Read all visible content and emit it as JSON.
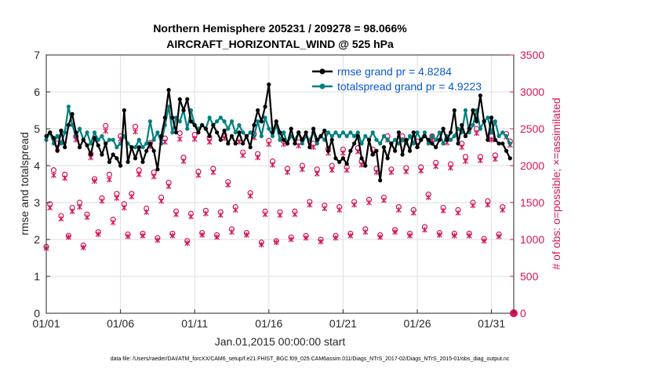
{
  "chart_data": {
    "type": "line",
    "title": "Northern Hemisphere 205231 / 209278 = 98.066%",
    "subtitle": "AIRCRAFT_HORIZONTAL_WIND @ 525 hPa",
    "xlabel": "Jan.01,2015 00:00:00 start",
    "ylabel": "rmse and totalspread",
    "y2label": "# of obs: o=possible; ×=assimilated",
    "footer": "data file: /Users/raeder/DAI/ATM_forcXX/CAM6_setup/f.e21.FHIST_BGC.f09_025.CAM6assim.011/Diags_NTrS_2017-02/Diags_NTrS_2015-01/obs_diag_output.nc",
    "xlim": [
      0,
      31.5
    ],
    "ylim": [
      0,
      7
    ],
    "y2lim": [
      0,
      3500
    ],
    "xticks": [
      0,
      5,
      10,
      15,
      20,
      25,
      30
    ],
    "xtick_labels": [
      "01/01",
      "01/06",
      "01/11",
      "01/16",
      "01/21",
      "01/26",
      "01/31"
    ],
    "yticks": [
      0,
      1,
      2,
      3,
      4,
      5,
      6,
      7
    ],
    "ytick_labels": [
      "0",
      "1",
      "2",
      "3",
      "4",
      "5",
      "6",
      "7"
    ],
    "y2ticks": [
      0,
      500,
      1000,
      1500,
      2000,
      2500,
      3000,
      3500
    ],
    "y2tick_labels": [
      "0",
      "500",
      "1000",
      "1500",
      "2000",
      "2500",
      "3000",
      "3500"
    ],
    "grid": true,
    "legend_position": "top-right",
    "series": [
      {
        "name": "rmse grand pr = 4.8284",
        "color": "#000000",
        "marker": "dot",
        "x": [
          0,
          0.25,
          0.5,
          0.75,
          1,
          1.25,
          1.5,
          1.75,
          2,
          2.25,
          2.5,
          2.75,
          3,
          3.25,
          3.5,
          3.75,
          4,
          4.25,
          4.5,
          4.75,
          5,
          5.25,
          5.5,
          5.75,
          6,
          6.25,
          6.5,
          6.75,
          7,
          7.25,
          7.5,
          7.75,
          8,
          8.25,
          8.5,
          8.75,
          9,
          9.25,
          9.5,
          9.75,
          10,
          10.25,
          10.5,
          10.75,
          11,
          11.25,
          11.5,
          11.75,
          12,
          12.25,
          12.5,
          12.75,
          13,
          13.25,
          13.5,
          13.75,
          14,
          14.25,
          14.5,
          14.75,
          15,
          15.25,
          15.5,
          15.75,
          16,
          16.25,
          16.5,
          16.75,
          17,
          17.25,
          17.5,
          17.75,
          18,
          18.25,
          18.5,
          18.75,
          19,
          19.25,
          19.5,
          19.75,
          20,
          20.25,
          20.5,
          20.75,
          21,
          21.25,
          21.5,
          21.75,
          22,
          22.25,
          22.5,
          22.75,
          23,
          23.25,
          23.5,
          23.75,
          24,
          24.25,
          24.5,
          24.75,
          25,
          25.25,
          25.5,
          25.75,
          26,
          26.25,
          26.5,
          26.75,
          27,
          27.25,
          27.5,
          27.75,
          28,
          28.25,
          28.5,
          28.75,
          29,
          29.25,
          29.5,
          29.75,
          30,
          30.25,
          30.5,
          30.75,
          31,
          31.25
        ],
        "y": [
          4.8,
          4.9,
          4.75,
          4.4,
          4.95,
          4.5,
          5.1,
          5.4,
          4.9,
          4.5,
          4.7,
          4.55,
          4.3,
          4.75,
          4.55,
          4.3,
          4.6,
          4.1,
          4.3,
          4.2,
          4.0,
          5.5,
          4.1,
          4.5,
          4.2,
          4.5,
          4.1,
          4.4,
          4.6,
          4.4,
          3.9,
          4.8,
          5.3,
          6.05,
          5.3,
          4.9,
          5.8,
          5.5,
          5.8,
          5.2,
          5.1,
          4.9,
          5.1,
          5.0,
          4.8,
          5.1,
          4.9,
          4.7,
          4.95,
          4.6,
          4.8,
          4.6,
          4.9,
          4.6,
          4.8,
          4.5,
          5.1,
          5.5,
          5.2,
          5.6,
          6.2,
          4.9,
          5.2,
          4.9,
          4.7,
          4.6,
          5.0,
          4.6,
          4.9,
          4.7,
          4.9,
          4.5,
          5.0,
          4.7,
          4.8,
          4.95,
          4.4,
          4.7,
          4.2,
          4.1,
          4.2,
          4.05,
          4.4,
          4.6,
          4.8,
          4.2,
          4.0,
          4.7,
          4.3,
          4.4,
          3.6,
          4.5,
          4.2,
          4.6,
          4.4,
          4.9,
          4.3,
          4.7,
          4.4,
          4.9,
          4.5,
          4.7,
          4.8,
          4.7,
          4.6,
          4.5,
          4.7,
          5.0,
          4.7,
          4.9,
          5.5,
          4.6,
          5.1,
          4.8,
          5.0,
          5.5,
          5.2,
          5.9,
          5.2,
          4.7,
          5.3,
          4.7,
          4.6,
          4.6,
          4.4,
          4.2
        ]
      },
      {
        "name": "totalspread grand pr = 4.9223",
        "color": "#00807f",
        "marker": "dot",
        "x": [
          0,
          0.25,
          0.5,
          0.75,
          1,
          1.25,
          1.5,
          1.75,
          2,
          2.25,
          2.5,
          2.75,
          3,
          3.25,
          3.5,
          3.75,
          4,
          4.25,
          4.5,
          4.75,
          5,
          5.25,
          5.5,
          5.75,
          6,
          6.25,
          6.5,
          6.75,
          7,
          7.25,
          7.5,
          7.75,
          8,
          8.25,
          8.5,
          8.75,
          9,
          9.25,
          9.5,
          9.75,
          10,
          10.25,
          10.5,
          10.75,
          11,
          11.25,
          11.5,
          11.75,
          12,
          12.25,
          12.5,
          12.75,
          13,
          13.25,
          13.5,
          13.75,
          14,
          14.25,
          14.5,
          14.75,
          15,
          15.25,
          15.5,
          15.75,
          16,
          16.25,
          16.5,
          16.75,
          17,
          17.25,
          17.5,
          17.75,
          18,
          18.25,
          18.5,
          18.75,
          19,
          19.25,
          19.5,
          19.75,
          20,
          20.25,
          20.5,
          20.75,
          21,
          21.25,
          21.5,
          21.75,
          22,
          22.25,
          22.5,
          22.75,
          23,
          23.25,
          23.5,
          23.75,
          24,
          24.25,
          24.5,
          24.75,
          25,
          25.25,
          25.5,
          25.75,
          26,
          26.25,
          26.5,
          26.75,
          27,
          27.25,
          27.5,
          27.75,
          28,
          28.25,
          28.5,
          28.75,
          29,
          29.25,
          29.5,
          29.75,
          30,
          30.25,
          30.5,
          30.75,
          31,
          31.25
        ],
        "y": [
          4.7,
          4.9,
          4.6,
          4.8,
          4.6,
          4.9,
          5.6,
          5.1,
          4.8,
          5.0,
          4.7,
          4.9,
          4.6,
          4.9,
          4.7,
          4.8,
          4.6,
          4.7,
          4.7,
          4.5,
          4.6,
          4.8,
          4.6,
          4.5,
          4.5,
          4.7,
          4.5,
          4.6,
          5.2,
          4.7,
          4.9,
          4.6,
          5.1,
          5.6,
          4.9,
          5.3,
          5.2,
          5.5,
          5.0,
          5.5,
          5.1,
          5.0,
          5.1,
          5.0,
          5.3,
          5.1,
          5.2,
          5.3,
          5.2,
          5.0,
          5.2,
          4.9,
          5.1,
          4.9,
          4.8,
          4.9,
          4.8,
          5.2,
          4.8,
          5.3,
          5.0,
          4.8,
          5.1,
          4.7,
          4.9,
          4.6,
          4.8,
          4.7,
          4.9,
          4.6,
          4.8,
          4.7,
          4.9,
          4.6,
          4.8,
          4.7,
          4.9,
          4.8,
          4.9,
          4.8,
          4.9,
          4.8,
          4.9,
          4.8,
          4.9,
          4.6,
          4.8,
          4.7,
          4.9,
          4.7,
          4.6,
          4.8,
          4.7,
          4.6,
          4.7,
          4.6,
          4.7,
          4.6,
          4.8,
          4.6,
          4.9,
          4.7,
          4.9,
          4.6,
          4.8,
          4.7,
          4.9,
          4.6,
          4.8,
          4.7,
          4.8,
          5.0,
          4.9,
          5.5,
          4.9,
          5.1,
          5.5,
          5.0,
          5.2,
          5.3,
          4.9,
          5.2,
          4.8,
          4.9,
          4.8,
          4.6
        ]
      }
    ],
    "obs_possible": {
      "name": "possible",
      "marker": "circle",
      "color": "#d4145a",
      "x": [
        0,
        0.25,
        0.5,
        0.75,
        1,
        1.25,
        1.5,
        1.75,
        2,
        2.25,
        2.5,
        2.75,
        3,
        3.25,
        3.5,
        3.75,
        4,
        4.25,
        4.5,
        4.75,
        5,
        5.25,
        5.5,
        5.75,
        6,
        6.25,
        6.5,
        6.75,
        7,
        7.25,
        7.5,
        7.75,
        8,
        8.25,
        8.5,
        8.75,
        9,
        9.25,
        9.5,
        9.75,
        10,
        10.25,
        10.5,
        10.75,
        11,
        11.25,
        11.5,
        11.75,
        12,
        12.25,
        12.5,
        12.75,
        13,
        13.25,
        13.5,
        13.75,
        14,
        14.25,
        14.5,
        14.75,
        15,
        15.25,
        15.5,
        15.75,
        16,
        16.25,
        16.5,
        16.75,
        17,
        17.25,
        17.5,
        17.75,
        18,
        18.25,
        18.5,
        18.75,
        19,
        19.25,
        19.5,
        19.75,
        20,
        20.25,
        20.5,
        20.75,
        21,
        21.25,
        21.5,
        21.75,
        22,
        22.25,
        22.5,
        22.75,
        23,
        23.25,
        23.5,
        23.75,
        24,
        24.25,
        24.5,
        24.75,
        25,
        25.25,
        25.5,
        25.75,
        26,
        26.25,
        26.5,
        26.75,
        27,
        27.25,
        27.5,
        27.75,
        28,
        28.25,
        28.5,
        28.75,
        29,
        29.25,
        29.5,
        29.75,
        30,
        30.25,
        30.5,
        30.75,
        31,
        31.25
      ],
      "y": [
        900,
        1480,
        1940,
        2300,
        1320,
        1880,
        1050,
        1430,
        2400,
        1500,
        920,
        1340,
        2160,
        1820,
        1100,
        1560,
        2540,
        1880,
        1270,
        1620,
        2400,
        1480,
        1070,
        1620,
        2530,
        1940,
        1080,
        1420,
        2310,
        1910,
        1020,
        1570,
        2370,
        1770,
        1080,
        1380,
        2440,
        2110,
        980,
        1350,
        2420,
        1920,
        1090,
        1390,
        2380,
        1960,
        1060,
        1370,
        2420,
        1780,
        1140,
        1440,
        2370,
        2180,
        1090,
        1630,
        2430,
        2160,
        960,
        1380,
        2340,
        2060,
        980,
        1370,
        2330,
        1960,
        1030,
        1380,
        2320,
        2000,
        1050,
        1510,
        2300,
        1950,
        1000,
        1460,
        2230,
        2000,
        1050,
        1440,
        2220,
        1980,
        1080,
        1510,
        2240,
        2060,
        1140,
        1540,
        2220,
        1960,
        1060,
        1570,
        2400,
        1950,
        1130,
        1440,
        2400,
        1970,
        1080,
        1400,
        2330,
        1980,
        1170,
        1610,
        2400,
        2040,
        1090,
        1430,
        2360,
        2020,
        1080,
        1400,
        2300,
        2120,
        1080,
        1500,
        2500,
        2120,
        1010,
        1520,
        2400,
        2140,
        1070,
        1440,
        2430,
        2330
      ]
    },
    "obs_assimilated": {
      "name": "assimilated",
      "marker": "x",
      "color": "#d4145a",
      "x": [
        0,
        0.25,
        0.5,
        0.75,
        1,
        1.25,
        1.5,
        1.75,
        2,
        2.25,
        2.5,
        2.75,
        3,
        3.25,
        3.5,
        3.75,
        4,
        4.25,
        4.5,
        4.75,
        5,
        5.25,
        5.5,
        5.75,
        6,
        6.25,
        6.5,
        6.75,
        7,
        7.25,
        7.5,
        7.75,
        8,
        8.25,
        8.5,
        8.75,
        9,
        9.25,
        9.5,
        9.75,
        10,
        10.25,
        10.5,
        10.75,
        11,
        11.25,
        11.5,
        11.75,
        12,
        12.25,
        12.5,
        12.75,
        13,
        13.25,
        13.5,
        13.75,
        14,
        14.25,
        14.5,
        14.75,
        15,
        15.25,
        15.5,
        15.75,
        16,
        16.25,
        16.5,
        16.75,
        17,
        17.25,
        17.5,
        17.75,
        18,
        18.25,
        18.5,
        18.75,
        19,
        19.25,
        19.5,
        19.75,
        20,
        20.25,
        20.5,
        20.75,
        21,
        21.25,
        21.5,
        21.75,
        22,
        22.25,
        22.5,
        22.75,
        23,
        23.25,
        23.5,
        23.75,
        24,
        24.25,
        24.5,
        24.75,
        25,
        25.25,
        25.5,
        25.75,
        26,
        26.25,
        26.5,
        26.75,
        27,
        27.25,
        27.5,
        27.75,
        28,
        28.25,
        28.5,
        28.75,
        29,
        29.25,
        29.5,
        29.75,
        30,
        30.25,
        30.5,
        30.75,
        31,
        31.25
      ],
      "y": [
        880,
        1430,
        1870,
        2240,
        1280,
        1830,
        1030,
        1380,
        2350,
        1440,
        890,
        1300,
        2110,
        1790,
        1070,
        1520,
        2470,
        1810,
        1230,
        1560,
        2360,
        1430,
        1040,
        1580,
        2460,
        1880,
        1050,
        1370,
        2260,
        1850,
        990,
        1520,
        2320,
        1720,
        1050,
        1340,
        2360,
        2060,
        950,
        1310,
        2360,
        1870,
        1060,
        1350,
        2320,
        1910,
        1030,
        1330,
        2370,
        1740,
        1100,
        1400,
        2320,
        2140,
        1060,
        1590,
        2380,
        2110,
        930,
        1340,
        2290,
        2010,
        960,
        1330,
        2290,
        1910,
        1000,
        1340,
        2270,
        1950,
        1020,
        1470,
        2250,
        1890,
        970,
        1420,
        2170,
        1940,
        1020,
        1400,
        2170,
        1940,
        1050,
        1470,
        2190,
        2010,
        1100,
        1500,
        2170,
        1910,
        1030,
        1530,
        2350,
        1910,
        1100,
        1400,
        2350,
        1920,
        1050,
        1360,
        2270,
        1930,
        1130,
        1570,
        2350,
        1990,
        1060,
        1390,
        2310,
        1970,
        1050,
        1360,
        2250,
        2060,
        1050,
        1460,
        2440,
        2070,
        980,
        1470,
        2350,
        2090,
        1040,
        1400,
        2390,
        2280
      ]
    }
  }
}
